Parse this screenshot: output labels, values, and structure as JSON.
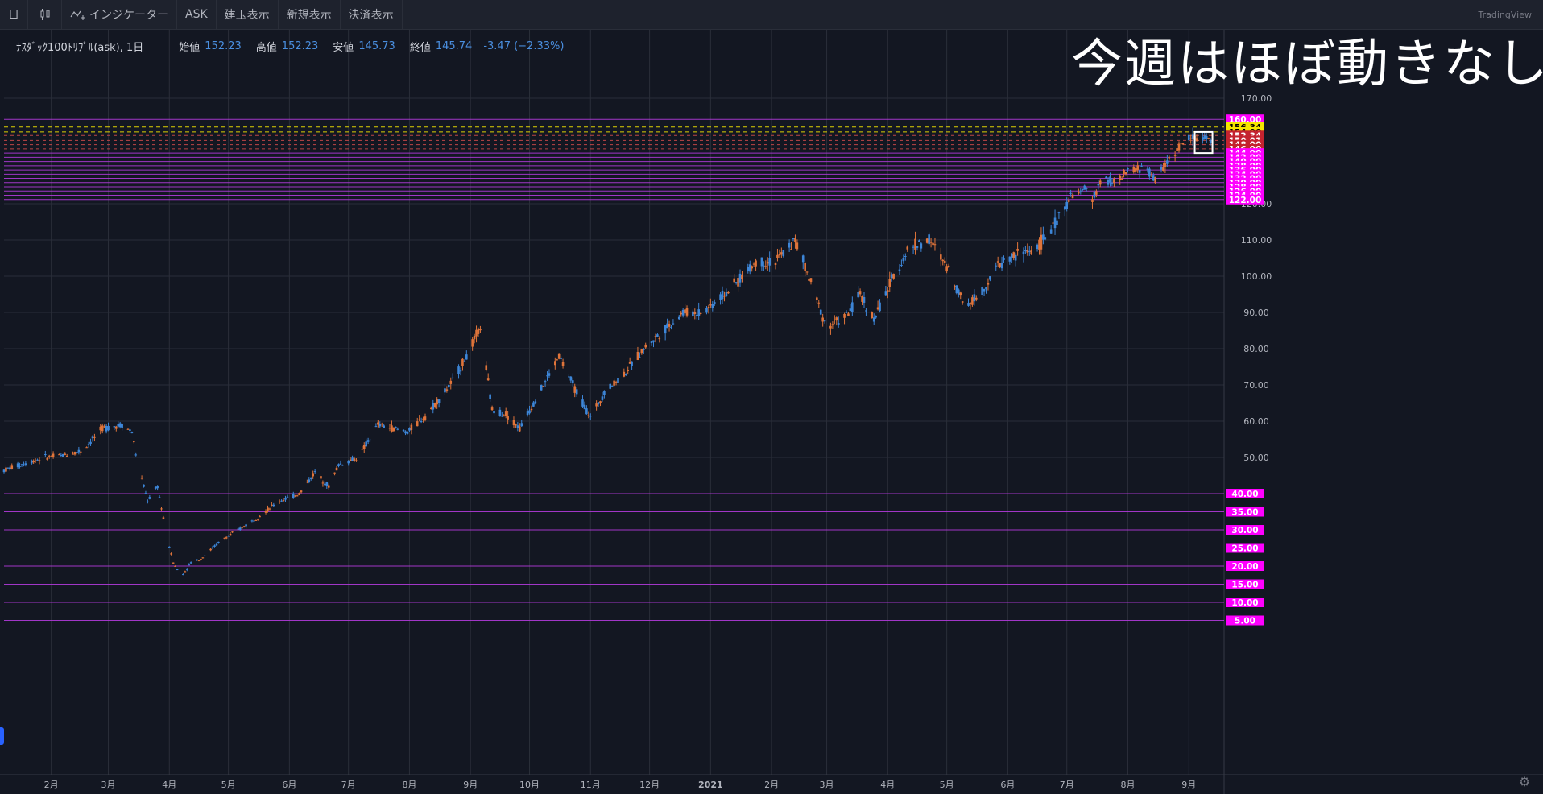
{
  "toolbar": {
    "interval": "日",
    "indicators": "インジケーター",
    "ask": "ASK",
    "positions": "建玉表示",
    "new_orders": "新規表示",
    "settled": "決済表示",
    "brand": "TradingView"
  },
  "legend": {
    "symbol": "ﾅｽﾀﾞｯｸ100ﾄﾘﾌﾟﾙ(ask), 1日",
    "open_label": "始値",
    "open": "152.23",
    "high_label": "高値",
    "high": "152.23",
    "low_label": "安値",
    "low": "145.73",
    "close_label": "終値",
    "close": "145.74",
    "change": "-3.47 (−2.33%)"
  },
  "annotation": "今週はほぼ動きなし",
  "colors": {
    "background": "#131722",
    "grid": "#2a2e39",
    "up": "#e0743a",
    "down": "#3d86d8",
    "level_line": "#b13ad9",
    "level_label": "#ff00ff",
    "yellow_label": "#f5e600",
    "red_label": "#c4232f"
  },
  "chart_data": {
    "type": "candlestick",
    "title": "",
    "ylim": [
      0,
      170
    ],
    "y_ticks": [
      170,
      120,
      110,
      100,
      90,
      80,
      70,
      60,
      50
    ],
    "x_ticks": [
      "2月",
      "3月",
      "4月",
      "5月",
      "6月",
      "7月",
      "8月",
      "9月",
      "10月",
      "11月",
      "12月",
      "2021",
      "2月",
      "3月",
      "4月",
      "5月",
      "6月",
      "7月",
      "8月",
      "9月"
    ],
    "x_tick_days": [
      24,
      53,
      84,
      114,
      145,
      175,
      206,
      237,
      267,
      298,
      328,
      359,
      390,
      418,
      449,
      479,
      510,
      540,
      571,
      602
    ],
    "x_end_day": 615,
    "keypoints": [
      [
        0,
        46.5
      ],
      [
        20,
        50
      ],
      [
        30,
        50.5
      ],
      [
        40,
        52
      ],
      [
        50,
        58
      ],
      [
        60,
        59
      ],
      [
        65,
        57
      ],
      [
        68,
        48
      ],
      [
        73,
        38
      ],
      [
        78,
        42
      ],
      [
        82,
        30
      ],
      [
        86,
        21
      ],
      [
        90,
        17
      ],
      [
        95,
        21
      ],
      [
        100,
        22
      ],
      [
        110,
        27
      ],
      [
        125,
        32
      ],
      [
        140,
        38
      ],
      [
        150,
        40
      ],
      [
        158,
        46
      ],
      [
        165,
        42
      ],
      [
        170,
        48
      ],
      [
        180,
        50
      ],
      [
        190,
        59
      ],
      [
        205,
        57
      ],
      [
        215,
        62
      ],
      [
        228,
        71
      ],
      [
        236,
        79
      ],
      [
        242,
        86
      ],
      [
        248,
        63
      ],
      [
        255,
        62
      ],
      [
        262,
        58
      ],
      [
        270,
        66
      ],
      [
        278,
        74
      ],
      [
        282,
        78
      ],
      [
        290,
        69
      ],
      [
        298,
        61
      ],
      [
        305,
        68
      ],
      [
        315,
        73
      ],
      [
        325,
        80
      ],
      [
        335,
        85
      ],
      [
        345,
        90
      ],
      [
        355,
        90
      ],
      [
        370,
        97
      ],
      [
        382,
        104
      ],
      [
        392,
        104
      ],
      [
        402,
        110
      ],
      [
        410,
        98
      ],
      [
        418,
        86
      ],
      [
        428,
        89
      ],
      [
        435,
        95
      ],
      [
        442,
        88
      ],
      [
        452,
        100
      ],
      [
        460,
        108
      ],
      [
        470,
        110
      ],
      [
        480,
        102
      ],
      [
        488,
        92
      ],
      [
        496,
        95
      ],
      [
        505,
        103
      ],
      [
        515,
        106
      ],
      [
        525,
        108
      ],
      [
        535,
        115
      ],
      [
        542,
        123
      ],
      [
        550,
        127
      ],
      [
        553,
        122
      ],
      [
        558,
        132
      ],
      [
        565,
        130
      ],
      [
        572,
        136
      ],
      [
        580,
        137
      ],
      [
        585,
        131
      ],
      [
        590,
        139
      ],
      [
        596,
        146
      ],
      [
        602,
        151
      ],
      [
        608,
        152
      ],
      [
        612,
        150
      ],
      [
        615,
        146
      ]
    ],
    "levels": [
      {
        "value": 160.0,
        "label": "160.00",
        "kind": "magenta"
      },
      {
        "value": 156.34,
        "label": "156.34",
        "kind": "yellow"
      },
      {
        "value": 154.0,
        "label": "154.00",
        "kind": "yellow"
      },
      {
        "value": 152.34,
        "label": "152.34",
        "kind": "red"
      },
      {
        "value": 150.01,
        "label": "150.01",
        "kind": "red"
      },
      {
        "value": 148.0,
        "label": "148.00",
        "kind": "red"
      },
      {
        "value": 146.0,
        "label": "146.00",
        "kind": "red"
      },
      {
        "value": 144.0,
        "label": "144.00",
        "kind": "magenta"
      },
      {
        "value": 142.0,
        "label": "142.00",
        "kind": "magenta"
      },
      {
        "value": 140.0,
        "label": "140.00",
        "kind": "magenta"
      },
      {
        "value": 138.0,
        "label": "138.00",
        "kind": "magenta"
      },
      {
        "value": 136.0,
        "label": "136.00",
        "kind": "magenta"
      },
      {
        "value": 134.0,
        "label": "134.00",
        "kind": "magenta"
      },
      {
        "value": 132.0,
        "label": "132.00",
        "kind": "magenta"
      },
      {
        "value": 130.0,
        "label": "130.00",
        "kind": "magenta"
      },
      {
        "value": 128.0,
        "label": "128.00",
        "kind": "magenta"
      },
      {
        "value": 126.0,
        "label": "126.00",
        "kind": "magenta"
      },
      {
        "value": 124.0,
        "label": "124.00",
        "kind": "magenta"
      },
      {
        "value": 122.0,
        "label": "122.00",
        "kind": "magenta"
      },
      {
        "value": 40.0,
        "label": "40.00",
        "kind": "magenta"
      },
      {
        "value": 35.0,
        "label": "35.00",
        "kind": "magenta"
      },
      {
        "value": 30.0,
        "label": "30.00",
        "kind": "magenta"
      },
      {
        "value": 25.0,
        "label": "25.00",
        "kind": "magenta"
      },
      {
        "value": 20.0,
        "label": "20.00",
        "kind": "magenta"
      },
      {
        "value": 15.0,
        "label": "15.00",
        "kind": "magenta"
      },
      {
        "value": 10.0,
        "label": "10.00",
        "kind": "magenta"
      },
      {
        "value": 5.0,
        "label": "5.00",
        "kind": "magenta"
      }
    ],
    "highlight_box": {
      "day_start": 605,
      "day_end": 614,
      "low": 144,
      "high": 154
    }
  }
}
